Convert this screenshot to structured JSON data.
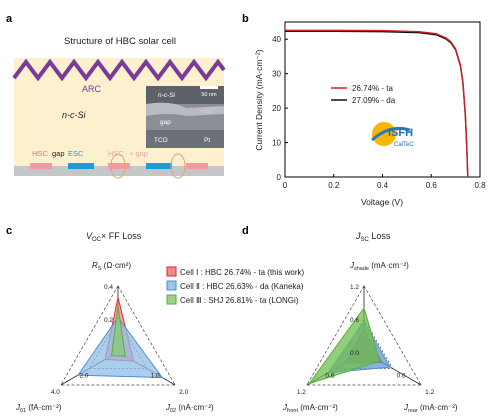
{
  "panels": {
    "a": {
      "label": "a",
      "title": "Structure of HBC solar cell",
      "layer_arc": "ARC",
      "layer_nsi": "n-c-Si",
      "contact_left": {
        "hsc": "HSC",
        "gap": "gap",
        "esc": "ESC"
      },
      "contact_right_hsc": "HSC",
      "contact_right_gap": "gap",
      "inset": {
        "nsi": "n-c-Si",
        "hsc": "HSC",
        "gap": "gap",
        "tco": "TCO",
        "pt": "Pt",
        "scale": "50 nm"
      }
    },
    "b": {
      "label": "b",
      "logo_text": "ISFH",
      "logo_sub": "CalTeC",
      "chart_data": {
        "type": "line",
        "xlabel": "Voltage (V)",
        "ylabel": "Current Density (mA·cm⁻²)",
        "xlim": [
          0,
          0.8
        ],
        "ylim": [
          0,
          45
        ],
        "xticks": [
          "0",
          "0.2",
          "0.4",
          "0.6",
          "0.8"
        ],
        "yticks": [
          "0",
          "10",
          "20",
          "30",
          "40"
        ],
        "legend_position": "center",
        "series": [
          {
            "name": "26.74% - ta",
            "color": "#d21f26",
            "x": [
              0,
              0.2,
              0.4,
              0.55,
              0.62,
              0.66,
              0.68,
              0.7,
              0.72,
              0.73,
              0.74,
              0.745,
              0.75
            ],
            "y": [
              42.6,
              42.6,
              42.5,
              42.2,
              41.6,
              40.4,
              39.3,
              37.2,
              32.5,
              27.5,
              18.0,
              10.0,
              0
            ]
          },
          {
            "name": "27.09% - da",
            "color": "#111111",
            "x": [
              0,
              0.2,
              0.4,
              0.55,
              0.62,
              0.66,
              0.68,
              0.7,
              0.72,
              0.73,
              0.74,
              0.745,
              0.75
            ],
            "y": [
              42.3,
              42.3,
              42.2,
              41.9,
              41.3,
              40.1,
              39.0,
              36.9,
              32.2,
              27.2,
              17.7,
              9.7,
              0
            ]
          }
        ]
      }
    },
    "c": {
      "label": "c",
      "title_pre": "V",
      "title_sub": "OC",
      "title_post": "× FF Loss",
      "chart_data": {
        "type": "radar",
        "axes": [
          {
            "name": "R_S (Ω·cm²)",
            "max": 0.4,
            "ticks": [
              "0.2",
              "0.4"
            ]
          },
          {
            "name": "J_02 (nA·cm⁻²)",
            "max": 2.0,
            "ticks": [
              "1.0",
              "2.0"
            ]
          },
          {
            "name": "J_01 (fA·cm⁻²)",
            "max": 4.0,
            "ticks": [
              "2.0",
              "4.0"
            ]
          }
        ],
        "legend_position": "right",
        "series": [
          {
            "name": "Cell Ⅰ : HBC 26.74% - ta (this work)",
            "color": "#e8242b",
            "values": [
              0.33,
              0.55,
              0.9
            ]
          },
          {
            "name": "Cell Ⅱ : HBC 26.63% - da (Kaneka)",
            "color": "#4f8fd0",
            "values": [
              0.21,
              1.55,
              2.8
            ]
          },
          {
            "name": "Cell Ⅲ : SHJ 26.81% - ta (LONGi)",
            "color": "#5aad3f",
            "values": [
              0.28,
              0.25,
              0.45
            ]
          }
        ]
      },
      "axis_labels": {
        "rs_main": "R",
        "rs_sub": "S",
        "rs_unit": " (Ω·cm²)",
        "j02_main": "J",
        "j02_sub": "02",
        "j02_unit": " (nA·cm⁻²)",
        "j01_main": "J",
        "j01_sub": "01",
        "j01_unit": " (fA·cm⁻²)"
      },
      "tick_labels": {
        "rs": [
          "0.2",
          "0.4"
        ],
        "j02": [
          "1.0",
          "2.0"
        ],
        "j01": [
          "2.0",
          "4.0"
        ]
      }
    },
    "d": {
      "label": "d",
      "title_pre": "J",
      "title_sub": "SC",
      "title_post": " Loss",
      "chart_data": {
        "type": "radar",
        "axes": [
          {
            "name": "J_shade (mA·cm⁻²)",
            "max": 1.2,
            "ticks": [
              "0.0",
              "0.6",
              "1.2"
            ]
          },
          {
            "name": "J_rear (mA·cm⁻²)",
            "max": 1.2,
            "ticks": [
              "0.6",
              "1.2"
            ]
          },
          {
            "name": "J_front (mA·cm⁻²)",
            "max": 1.2,
            "ticks": [
              "0.6",
              "1.2"
            ]
          }
        ],
        "series": [
          {
            "name": "Cell Ⅰ",
            "color": "#e8242b",
            "values": [
              0.42,
              0.38,
              0.4
            ]
          },
          {
            "name": "Cell Ⅱ",
            "color": "#4f8fd0",
            "values": [
              0.55,
              0.55,
              0.75
            ]
          },
          {
            "name": "Cell Ⅲ",
            "color": "#5aad3f",
            "values": [
              0.8,
              0.33,
              1.15
            ]
          }
        ]
      },
      "axis_labels": {
        "shade_main": "J",
        "shade_sub": "shade",
        "shade_unit": " (mA·cm⁻²)",
        "rear_main": "J",
        "rear_sub": "rear",
        "rear_unit": " (mA·cm⁻²)",
        "front_main": "J",
        "front_sub": "front",
        "front_unit": " (mA·cm⁻²)"
      },
      "tick_labels": {
        "shade": [
          "0.0",
          "0.6",
          "1.2"
        ],
        "rear": [
          "0.6",
          "1.2"
        ],
        "front": [
          "0.6",
          "1.2"
        ]
      }
    }
  }
}
